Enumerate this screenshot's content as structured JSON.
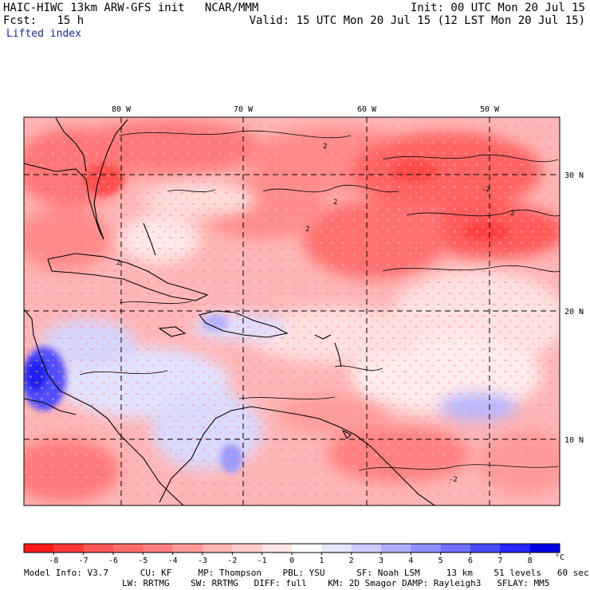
{
  "header": {
    "title": "HAIC-HIWC 13km ARW-GFS init   NCAR/MMM",
    "forecast_label": "Fcst:",
    "forecast_hours": "15 h",
    "init_time": "Init: 00 UTC Mon 20 Jul 15",
    "valid_time": "Valid: 15 UTC Mon 20 Jul 15 (12 LST Mon 20 Jul 15)",
    "field_name": "Lifted index"
  },
  "map": {
    "longitude_labels": [
      "80 W",
      "70 W",
      "60 W",
      "50 W"
    ],
    "latitude_labels": [
      "30 N",
      "20 N",
      "10 N"
    ],
    "contour_labels": [
      "2",
      "2",
      "2",
      "2",
      "2",
      "-2",
      "-2"
    ]
  },
  "colorbar": {
    "unit": "°C",
    "tick_labels": [
      "-8",
      "-7",
      "-6",
      "-5",
      "-4",
      "-3",
      "-2",
      "-1",
      "0",
      "1",
      "2",
      "3",
      "4",
      "5",
      "6",
      "7",
      "8"
    ],
    "colors": [
      "#ff1a1a",
      "#ff3838",
      "#ff5555",
      "#ff6a6a",
      "#ff8080",
      "#ff9a9a",
      "#ffb4b4",
      "#ffcccc",
      "#ffe6e6",
      "#ffffff",
      "#e6e6ff",
      "#ccccff",
      "#b0b0ff",
      "#8f8fff",
      "#6e6eff",
      "#4a4aff",
      "#2525ff",
      "#0000e6"
    ]
  },
  "model_info": {
    "line1": "Model Info: V3.7      CU: KF     MP: Thompson    PBL: YSU      SF: Noah LSM     13 km    51 levels   60 sec",
    "line2": "LW: RRTMG    SW: RRTMG   DIFF: full    KM: 2D Smagor DAMP: Rayleigh3   SFLAY: MM5"
  }
}
